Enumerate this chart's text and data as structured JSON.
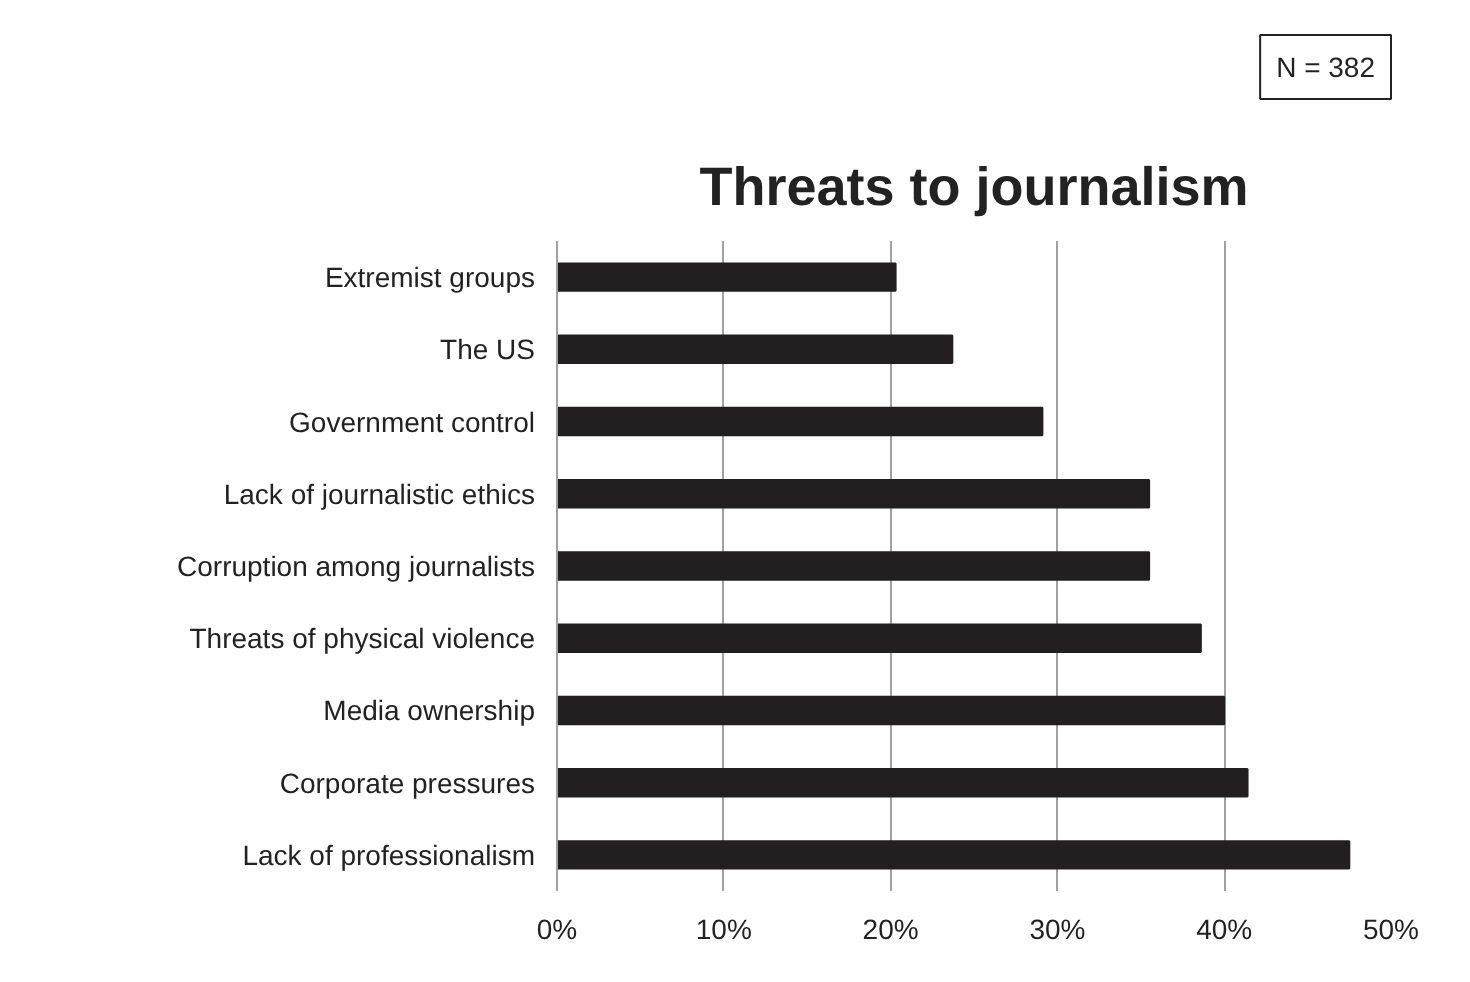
{
  "chart_data": {
    "type": "bar",
    "orientation": "horizontal",
    "title": "Threats to journalism",
    "annotations": [
      "N = 382"
    ],
    "categories": [
      "Extremist groups",
      "The US",
      "Government control",
      "Lack of journalistic ethics",
      "Corruption among journalists",
      "Threats of physical violence",
      "Media ownership",
      "Corporate pressures",
      "Lack of professionalism"
    ],
    "values": [
      20.3,
      23.7,
      29.1,
      35.5,
      35.5,
      38.6,
      40.0,
      41.4,
      47.5
    ],
    "color": "#231f20",
    "xlim": [
      0,
      50
    ],
    "xticks": [
      {
        "value": 0,
        "label": "0%"
      },
      {
        "value": 10,
        "label": "10%"
      },
      {
        "value": 20,
        "label": "20%"
      },
      {
        "value": 30,
        "label": "30%"
      },
      {
        "value": 40,
        "label": "40%"
      },
      {
        "value": 50,
        "label": "50%"
      }
    ],
    "grid": "x"
  }
}
